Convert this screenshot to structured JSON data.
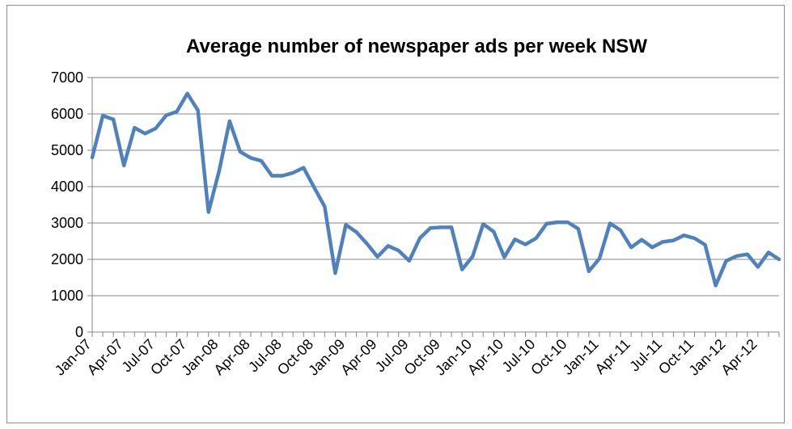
{
  "chart_data": {
    "type": "line",
    "title": "Average number of newspaper ads per week NSW",
    "xlabel": "",
    "ylabel": "",
    "ylim": [
      0,
      7000
    ],
    "yticks": [
      0,
      1000,
      2000,
      3000,
      4000,
      5000,
      6000,
      7000
    ],
    "grid": true,
    "legend": "none",
    "x_tick_labels": [
      "Jan-07",
      "Apr-07",
      "Jul-07",
      "Oct-07",
      "Jan-08",
      "Apr-08",
      "Jul-08",
      "Oct-08",
      "Jan-09",
      "Apr-09",
      "Jul-09",
      "Oct-09",
      "Jan-10",
      "Apr-10",
      "Jul-10",
      "Oct-10",
      "Jan-11",
      "Apr-11",
      "Jul-11",
      "Oct-11",
      "Jan-12",
      "Apr-12"
    ],
    "x": [
      "Jan-07",
      "Feb-07",
      "Mar-07",
      "Apr-07",
      "May-07",
      "Jun-07",
      "Jul-07",
      "Aug-07",
      "Sep-07",
      "Oct-07",
      "Nov-07",
      "Dec-07",
      "Jan-08",
      "Feb-08",
      "Mar-08",
      "Apr-08",
      "May-08",
      "Jun-08",
      "Jul-08",
      "Aug-08",
      "Sep-08",
      "Oct-08",
      "Nov-08",
      "Dec-08",
      "Jan-09",
      "Feb-09",
      "Mar-09",
      "Apr-09",
      "May-09",
      "Jun-09",
      "Jul-09",
      "Aug-09",
      "Sep-09",
      "Oct-09",
      "Nov-09",
      "Dec-09",
      "Jan-10",
      "Feb-10",
      "Mar-10",
      "Apr-10",
      "May-10",
      "Jun-10",
      "Jul-10",
      "Aug-10",
      "Sep-10",
      "Oct-10",
      "Nov-10",
      "Dec-10",
      "Jan-11",
      "Feb-11",
      "Mar-11",
      "Apr-11",
      "May-11",
      "Jun-11",
      "Jul-11",
      "Aug-11",
      "Sep-11",
      "Oct-11",
      "Nov-11",
      "Dec-11",
      "Jan-12",
      "Feb-12",
      "Mar-12",
      "Apr-12",
      "May-12",
      "Jun-12"
    ],
    "series": [
      {
        "color": "#4f81bd",
        "values": [
          4800,
          5950,
          5850,
          4580,
          5620,
          5460,
          5600,
          5960,
          6060,
          6560,
          6100,
          3300,
          4420,
          5800,
          4960,
          4790,
          4710,
          4300,
          4300,
          4380,
          4520,
          3980,
          3450,
          1620,
          2950,
          2750,
          2430,
          2070,
          2370,
          2240,
          1960,
          2580,
          2860,
          2880,
          2880,
          1720,
          2080,
          2970,
          2760,
          2060,
          2550,
          2410,
          2580,
          2980,
          3020,
          3020,
          2840,
          1670,
          2020,
          2990,
          2800,
          2330,
          2540,
          2330,
          2480,
          2520,
          2660,
          2580,
          2400,
          1280,
          1960,
          2090,
          2140,
          1790,
          2190,
          2000
        ]
      }
    ]
  }
}
